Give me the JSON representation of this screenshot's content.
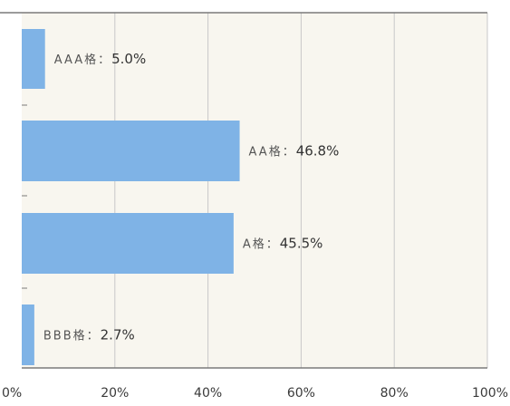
{
  "colors": {
    "bar": "#7fb3e6",
    "plot_bg": "#f8f6ef",
    "grid": "#c8c8c8",
    "axis": "#7a7a7a"
  },
  "chart_data": {
    "type": "bar",
    "orientation": "horizontal",
    "categories": [
      "AAA格",
      "AA格",
      "A格",
      "BBB格"
    ],
    "values": [
      5.0,
      46.8,
      45.5,
      2.7
    ],
    "data_labels": [
      {
        "prefix": "AAA格：",
        "value": "5.0%"
      },
      {
        "prefix": "AA格：",
        "value": "46.8%"
      },
      {
        "prefix": "A格：",
        "value": "45.5%"
      },
      {
        "prefix": "BBB格：",
        "value": "2.7%"
      }
    ],
    "x_ticks": [
      "0%",
      "20%",
      "40%",
      "60%",
      "80%",
      "100%"
    ],
    "xlim": [
      0,
      100
    ],
    "grid": true
  }
}
